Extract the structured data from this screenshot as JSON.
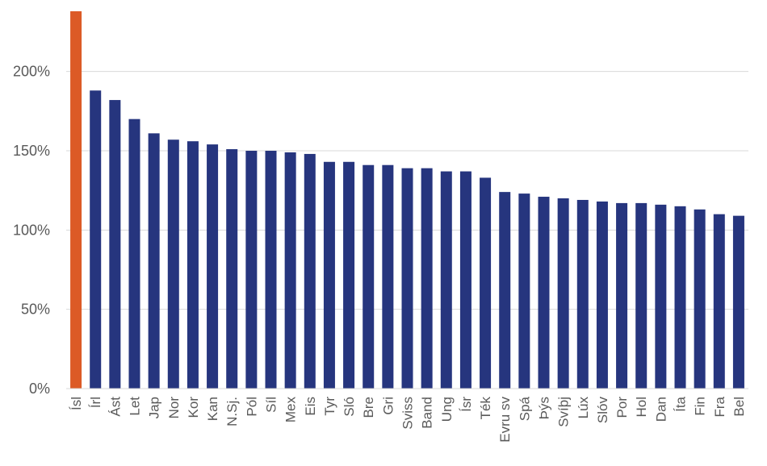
{
  "chart_data": {
    "type": "bar",
    "title": "",
    "xlabel": "",
    "ylabel": "",
    "ylim": [
      0,
      240
    ],
    "yticks": [
      0,
      50,
      100,
      150,
      200
    ],
    "ytick_labels": [
      "0%",
      "50%",
      "100%",
      "150%",
      "200%"
    ],
    "grid": true,
    "legend": "none",
    "categories": [
      "Ísl",
      "Írl",
      "Ást",
      "Let",
      "Jap",
      "Nor",
      "Kor",
      "Kan",
      "N.Sj.",
      "Pól",
      "Síl",
      "Mex",
      "Eis",
      "Tyr",
      "Sló",
      "Bre",
      "Gri",
      "Sviss",
      "Band",
      "Ung",
      "Ísr",
      "Ték",
      "Evru sv",
      "Spá",
      "Þýs",
      "Svíþj",
      "Lúx",
      "Slóv",
      "Por",
      "Hol",
      "Dan",
      "Íta",
      "Fin",
      "Fra",
      "Bel"
    ],
    "values": [
      238,
      188,
      182,
      170,
      161,
      157,
      156,
      154,
      151,
      150,
      150,
      149,
      148,
      143,
      143,
      141,
      141,
      139,
      139,
      137,
      137,
      133,
      124,
      123,
      121,
      120,
      119,
      118,
      117,
      117,
      116,
      115,
      113,
      110,
      109
    ],
    "colors": {
      "highlight": "#dc5a26",
      "bar": "#26357e",
      "grid": "#d9d9d9",
      "text": "#595959"
    },
    "highlight_index": 0
  }
}
